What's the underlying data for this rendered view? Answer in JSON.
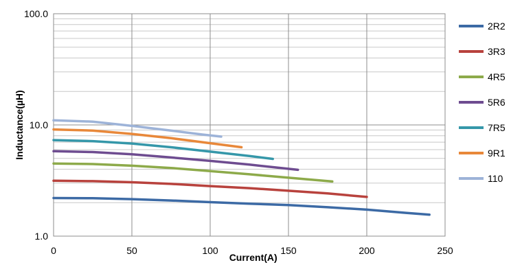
{
  "chart_data": {
    "type": "line",
    "title": "",
    "xlabel": "Current(A)",
    "ylabel": "Inductance(µH)",
    "xlim": [
      0,
      250
    ],
    "ylim": [
      1.0,
      100.0
    ],
    "y_scale": "log",
    "grid": true,
    "legend_position": "right",
    "x_ticks": [
      0,
      50,
      100,
      150,
      200,
      250
    ],
    "x_tick_labels": [
      "0",
      "50",
      "100",
      "150",
      "200",
      "250"
    ],
    "y_ticks": [
      1.0,
      10.0,
      100.0
    ],
    "y_tick_labels": [
      "1.0",
      "10.0",
      "100.0"
    ],
    "series": [
      {
        "name": "2R2",
        "color": "#3C6AA5",
        "x": [
          0,
          25,
          50,
          75,
          100,
          125,
          150,
          175,
          200,
          225,
          240
        ],
        "y": [
          2.2,
          2.19,
          2.15,
          2.09,
          2.02,
          1.96,
          1.9,
          1.82,
          1.73,
          1.62,
          1.56
        ]
      },
      {
        "name": "3R3",
        "color": "#B8423D",
        "x": [
          0,
          25,
          50,
          75,
          100,
          125,
          150,
          175,
          200
        ],
        "y": [
          3.15,
          3.12,
          3.05,
          2.95,
          2.82,
          2.7,
          2.56,
          2.42,
          2.25
        ]
      },
      {
        "name": "4R5",
        "color": "#8DAA4A",
        "x": [
          0,
          25,
          50,
          75,
          100,
          125,
          150,
          178
        ],
        "y": [
          4.5,
          4.45,
          4.3,
          4.1,
          3.85,
          3.6,
          3.35,
          3.1
        ]
      },
      {
        "name": "5R6",
        "color": "#6E4C90",
        "x": [
          0,
          25,
          50,
          75,
          100,
          125,
          156
        ],
        "y": [
          5.8,
          5.7,
          5.45,
          5.1,
          4.75,
          4.4,
          3.95
        ]
      },
      {
        "name": "7R5",
        "color": "#3597A9",
        "x": [
          0,
          25,
          50,
          75,
          100,
          125,
          140
        ],
        "y": [
          7.3,
          7.15,
          6.8,
          6.3,
          5.75,
          5.25,
          4.95
        ]
      },
      {
        "name": "9R1",
        "color": "#E8883A",
        "x": [
          0,
          25,
          50,
          75,
          100,
          120
        ],
        "y": [
          9.1,
          8.9,
          8.3,
          7.6,
          6.85,
          6.3
        ]
      },
      {
        "name": "110",
        "color": "#9DB3D8",
        "x": [
          0,
          25,
          50,
          75,
          95,
          107
        ],
        "y": [
          11.0,
          10.7,
          9.8,
          8.9,
          8.2,
          7.85
        ]
      }
    ]
  }
}
